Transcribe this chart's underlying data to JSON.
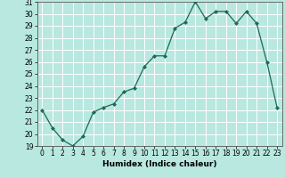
{
  "x": [
    0,
    1,
    2,
    3,
    4,
    5,
    6,
    7,
    8,
    9,
    10,
    11,
    12,
    13,
    14,
    15,
    16,
    17,
    18,
    19,
    20,
    21,
    22,
    23
  ],
  "y": [
    22,
    20.5,
    19.5,
    19,
    19.8,
    21.8,
    22.2,
    22.5,
    23.5,
    23.8,
    25.6,
    26.5,
    26.5,
    28.8,
    29.3,
    31.0,
    29.6,
    30.2,
    30.2,
    29.2,
    30.2,
    29.2,
    26.0,
    22.2
  ],
  "xlabel": "Humidex (Indice chaleur)",
  "ylim": [
    19,
    31
  ],
  "yticks": [
    19,
    20,
    21,
    22,
    23,
    24,
    25,
    26,
    27,
    28,
    29,
    30,
    31
  ],
  "xticks": [
    0,
    1,
    2,
    3,
    4,
    5,
    6,
    7,
    8,
    9,
    10,
    11,
    12,
    13,
    14,
    15,
    16,
    17,
    18,
    19,
    20,
    21,
    22,
    23
  ],
  "xlim": [
    -0.5,
    23.5
  ],
  "line_color": "#1a6b5a",
  "marker": "D",
  "marker_size": 2.0,
  "bg_color": "#b8e8e0",
  "grid_color": "#ffffff",
  "label_fontsize": 6.5,
  "tick_fontsize": 5.5,
  "linewidth": 0.9
}
